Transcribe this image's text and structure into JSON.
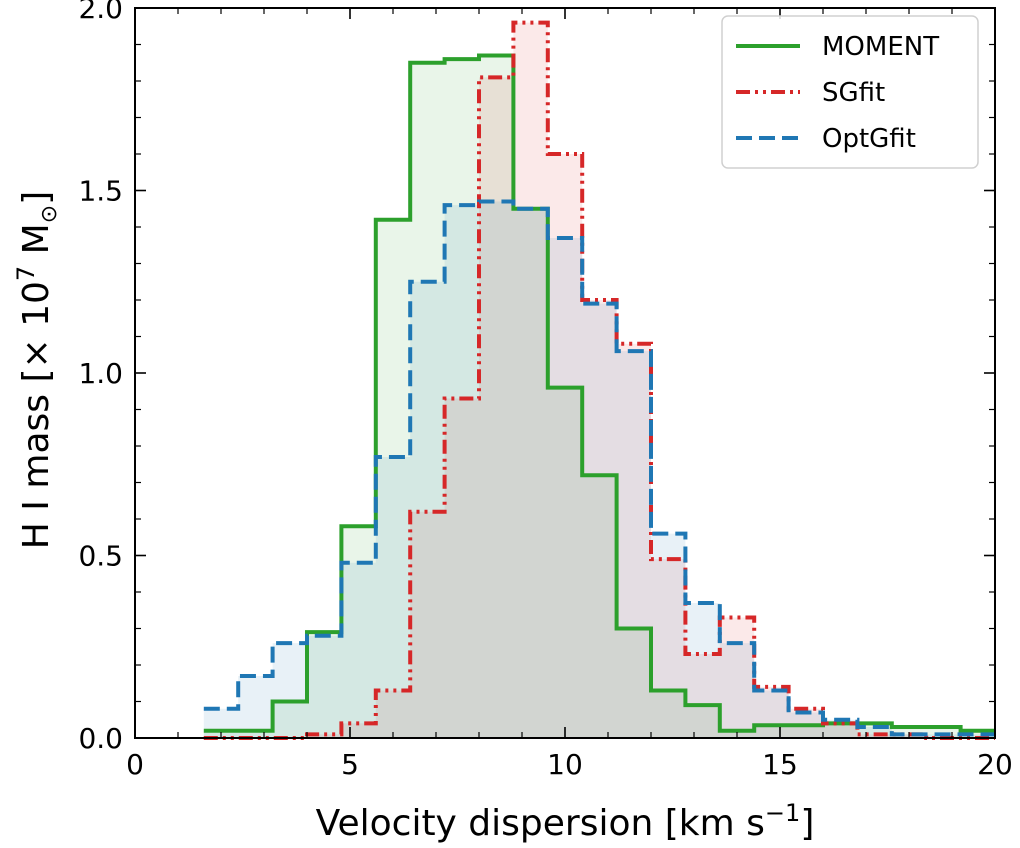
{
  "chart_data": {
    "type": "histogram",
    "xlabel": {
      "main": "Velocity dispersion [km s",
      "sup": "−1",
      "end": "]"
    },
    "ylabel": {
      "main": "H I mass [× 10",
      "sup": "7",
      "mid": " M",
      "sub": "⊙",
      "end": "]"
    },
    "xlim": [
      0,
      20
    ],
    "ylim": [
      0,
      2.0
    ],
    "xticks": [
      0,
      5,
      10,
      15,
      20
    ],
    "xtick_labels": [
      "0",
      "5",
      "10",
      "15",
      "20"
    ],
    "yticks": [
      0.0,
      0.5,
      1.0,
      1.5,
      2.0
    ],
    "ytick_labels": [
      "0.0",
      "0.5",
      "1.0",
      "1.5",
      "2.0"
    ],
    "x_minor_step": 1,
    "y_minor_step": 0.1,
    "bin_edges": [
      1.6,
      2.4,
      3.2,
      4.0,
      4.8,
      5.6,
      6.4,
      7.2,
      8.0,
      8.8,
      9.6,
      10.4,
      11.2,
      12.0,
      12.8,
      13.6,
      14.4,
      15.2,
      16.0,
      16.8,
      17.6,
      18.4,
      19.2,
      20.0
    ],
    "series": [
      {
        "name": "MOMENT",
        "color": "#2ca02c",
        "dash": "solid",
        "values": [
          0.02,
          0.02,
          0.1,
          0.29,
          0.58,
          1.42,
          1.85,
          1.86,
          1.87,
          1.45,
          0.96,
          0.72,
          0.3,
          0.13,
          0.09,
          0.02,
          0.035,
          0.035,
          0.04,
          0.04,
          0.03,
          0.03,
          0.02
        ]
      },
      {
        "name": "SGfit",
        "color": "#d62728",
        "dash": "dashdotdot",
        "values": [
          0.0,
          0.0,
          0.0,
          0.01,
          0.04,
          0.13,
          0.62,
          0.93,
          1.81,
          1.96,
          1.6,
          1.2,
          1.08,
          0.49,
          0.23,
          0.33,
          0.14,
          0.08,
          0.04,
          0.01,
          0.01,
          0.0,
          0.0
        ]
      },
      {
        "name": "OptGfit",
        "color": "#1f77b4",
        "dash": "dashed",
        "values": [
          0.08,
          0.17,
          0.26,
          0.28,
          0.48,
          0.77,
          1.25,
          1.46,
          1.47,
          1.45,
          1.37,
          1.19,
          1.06,
          0.56,
          0.37,
          0.26,
          0.13,
          0.07,
          0.05,
          0.03,
          0.01,
          0.01,
          0.01
        ]
      }
    ],
    "legend_position": "top-right"
  }
}
